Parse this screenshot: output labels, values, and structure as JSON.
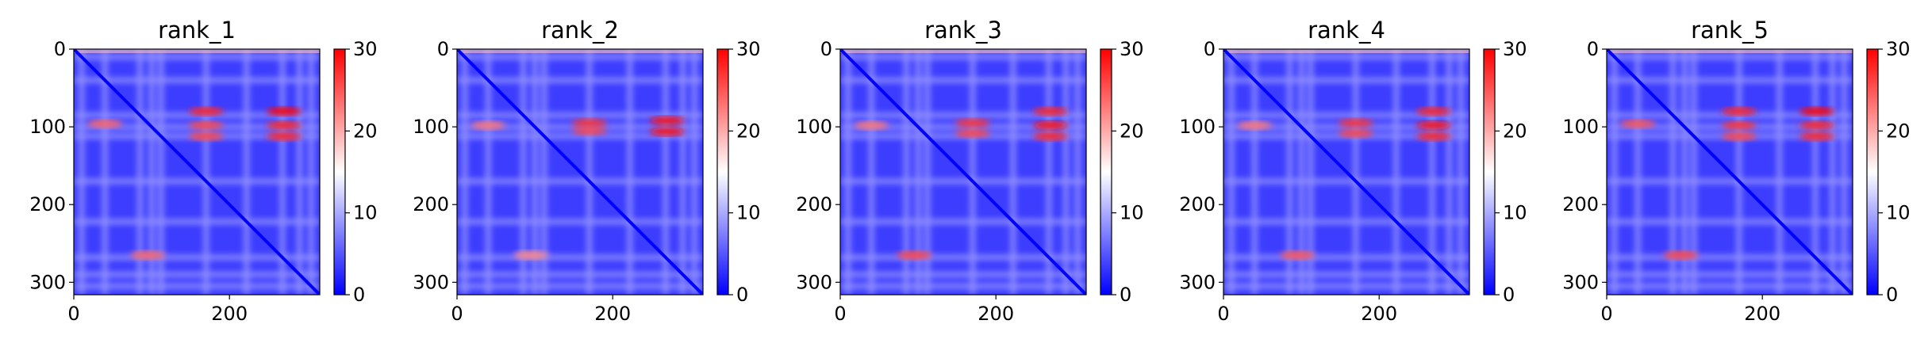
{
  "chart_data": [
    {
      "type": "heatmap",
      "title": "rank_1",
      "x_ticks": [
        0,
        200
      ],
      "y_ticks": [
        0,
        100,
        200,
        300
      ],
      "xlim": [
        0,
        316
      ],
      "ylim": [
        316,
        0
      ],
      "colorbar": {
        "ticks": [
          0,
          10,
          20,
          30
        ],
        "range": [
          0,
          30
        ],
        "cmap": "bwr"
      },
      "hotspots": [
        {
          "x": 270,
          "y": 80,
          "value": 30
        },
        {
          "x": 270,
          "y": 98,
          "value": 28
        },
        {
          "x": 270,
          "y": 112,
          "value": 28
        },
        {
          "x": 170,
          "y": 80,
          "value": 28
        },
        {
          "x": 170,
          "y": 98,
          "value": 26
        },
        {
          "x": 170,
          "y": 112,
          "value": 26
        },
        {
          "x": 40,
          "y": 96,
          "value": 24
        },
        {
          "x": 95,
          "y": 265,
          "value": 24
        }
      ]
    },
    {
      "type": "heatmap",
      "title": "rank_2",
      "x_ticks": [
        0,
        200
      ],
      "y_ticks": [
        0,
        100,
        200,
        300
      ],
      "xlim": [
        0,
        316
      ],
      "ylim": [
        316,
        0
      ],
      "colorbar": {
        "ticks": [
          0,
          10,
          20,
          30
        ],
        "range": [
          0,
          30
        ],
        "cmap": "bwr"
      },
      "hotspots": [
        {
          "x": 270,
          "y": 92,
          "value": 29
        },
        {
          "x": 270,
          "y": 106,
          "value": 29
        },
        {
          "x": 170,
          "y": 95,
          "value": 27
        },
        {
          "x": 170,
          "y": 105,
          "value": 26
        },
        {
          "x": 40,
          "y": 98,
          "value": 23
        },
        {
          "x": 95,
          "y": 265,
          "value": 22
        }
      ]
    },
    {
      "type": "heatmap",
      "title": "rank_3",
      "x_ticks": [
        0,
        200
      ],
      "y_ticks": [
        0,
        100,
        200,
        300
      ],
      "xlim": [
        0,
        316
      ],
      "ylim": [
        316,
        0
      ],
      "colorbar": {
        "ticks": [
          0,
          10,
          20,
          30
        ],
        "range": [
          0,
          30
        ],
        "cmap": "bwr"
      },
      "hotspots": [
        {
          "x": 270,
          "y": 80,
          "value": 28
        },
        {
          "x": 270,
          "y": 98,
          "value": 29
        },
        {
          "x": 270,
          "y": 112,
          "value": 28
        },
        {
          "x": 170,
          "y": 95,
          "value": 27
        },
        {
          "x": 170,
          "y": 108,
          "value": 26
        },
        {
          "x": 40,
          "y": 98,
          "value": 23
        },
        {
          "x": 95,
          "y": 265,
          "value": 26
        }
      ]
    },
    {
      "type": "heatmap",
      "title": "rank_4",
      "x_ticks": [
        0,
        200
      ],
      "y_ticks": [
        0,
        100,
        200,
        300
      ],
      "xlim": [
        0,
        316
      ],
      "ylim": [
        316,
        0
      ],
      "colorbar": {
        "ticks": [
          0,
          10,
          20,
          30
        ],
        "range": [
          0,
          30
        ],
        "cmap": "bwr"
      },
      "hotspots": [
        {
          "x": 270,
          "y": 80,
          "value": 28
        },
        {
          "x": 270,
          "y": 98,
          "value": 29
        },
        {
          "x": 270,
          "y": 112,
          "value": 28
        },
        {
          "x": 170,
          "y": 95,
          "value": 27
        },
        {
          "x": 170,
          "y": 108,
          "value": 26
        },
        {
          "x": 40,
          "y": 98,
          "value": 23
        },
        {
          "x": 95,
          "y": 265,
          "value": 25
        }
      ]
    },
    {
      "type": "heatmap",
      "title": "rank_5",
      "x_ticks": [
        0,
        200
      ],
      "y_ticks": [
        0,
        100,
        200,
        300
      ],
      "xlim": [
        0,
        316
      ],
      "ylim": [
        316,
        0
      ],
      "colorbar": {
        "ticks": [
          0,
          10,
          20,
          30
        ],
        "range": [
          0,
          30
        ],
        "cmap": "bwr"
      },
      "hotspots": [
        {
          "x": 270,
          "y": 80,
          "value": 30
        },
        {
          "x": 270,
          "y": 98,
          "value": 28
        },
        {
          "x": 270,
          "y": 112,
          "value": 28
        },
        {
          "x": 170,
          "y": 80,
          "value": 28
        },
        {
          "x": 170,
          "y": 98,
          "value": 27
        },
        {
          "x": 170,
          "y": 112,
          "value": 26
        },
        {
          "x": 40,
          "y": 96,
          "value": 25
        },
        {
          "x": 95,
          "y": 265,
          "value": 26
        }
      ]
    }
  ]
}
